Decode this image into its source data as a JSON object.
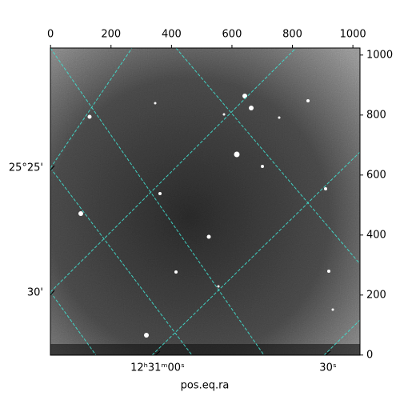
{
  "chart_data": {
    "type": "image",
    "x_label": "pos.eq.ra",
    "xlim": [
      -0.5,
      1023.5
    ],
    "ylim": [
      -0.5,
      1023.5
    ],
    "xticks": [
      0,
      200,
      400,
      600,
      800,
      1000
    ],
    "yticks": [
      0,
      200,
      400,
      600,
      800,
      1000
    ],
    "world_x_ticks": [
      "12ʰ31ᵐ00ˢ",
      "30ˢ"
    ],
    "world_y_ticks": [
      "25°25'",
      "30'"
    ],
    "grid_color": "#40e0d0"
  }
}
